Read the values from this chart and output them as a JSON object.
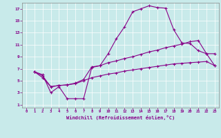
{
  "xlabel": "Windchill (Refroidissement éolien,°C)",
  "bg_color": "#c8eaea",
  "line_color": "#880088",
  "grid_color": "#b0d8d8",
  "xlim": [
    -0.5,
    23.5
  ],
  "ylim": [
    0.5,
    18.0
  ],
  "xticks": [
    0,
    1,
    2,
    3,
    4,
    5,
    6,
    7,
    8,
    9,
    10,
    11,
    12,
    13,
    14,
    15,
    16,
    17,
    18,
    19,
    20,
    21,
    22,
    23
  ],
  "yticks": [
    1,
    3,
    5,
    7,
    9,
    11,
    13,
    15,
    17
  ],
  "line1_x": [
    1,
    2,
    3,
    4,
    5,
    6,
    7,
    8,
    9,
    10,
    11,
    12,
    13,
    14,
    15,
    16,
    17,
    18,
    19,
    20,
    21,
    22,
    23
  ],
  "line1_y": [
    6.5,
    6.0,
    3.0,
    4.0,
    2.0,
    2.0,
    2.0,
    7.2,
    7.5,
    9.5,
    12.0,
    14.0,
    16.5,
    17.0,
    17.5,
    17.2,
    17.1,
    13.5,
    11.3,
    11.2,
    10.0,
    9.5,
    7.5
  ],
  "line2_x": [
    1,
    2,
    3,
    4,
    5,
    6,
    7,
    8,
    9,
    10,
    11,
    12,
    13,
    14,
    15,
    16,
    17,
    18,
    19,
    20,
    21,
    22,
    23
  ],
  "line2_y": [
    6.5,
    5.8,
    4.0,
    4.2,
    4.3,
    4.6,
    5.2,
    7.3,
    7.5,
    8.0,
    8.3,
    8.7,
    9.0,
    9.4,
    9.8,
    10.1,
    10.5,
    10.8,
    11.1,
    11.5,
    11.7,
    9.5,
    9.5
  ],
  "line3_x": [
    1,
    2,
    3,
    4,
    5,
    6,
    7,
    8,
    9,
    10,
    11,
    12,
    13,
    14,
    15,
    16,
    17,
    18,
    19,
    20,
    21,
    22,
    23
  ],
  "line3_y": [
    6.5,
    5.5,
    4.0,
    4.2,
    4.3,
    4.5,
    5.0,
    5.5,
    5.8,
    6.1,
    6.3,
    6.6,
    6.8,
    7.0,
    7.2,
    7.4,
    7.6,
    7.8,
    7.9,
    8.0,
    8.1,
    8.2,
    7.5
  ]
}
